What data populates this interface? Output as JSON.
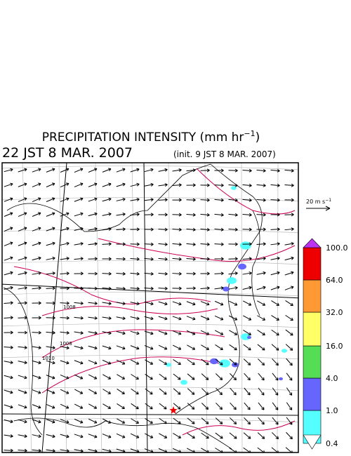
{
  "header": {
    "title": "PRECIPITATION INTENSITY (mm hr",
    "title_exponent": "−1",
    "title_close": ")",
    "valid_time": "22 JST 8 MAR. 2007",
    "init_time": "(init. 9 JST 8 MAR. 2007)"
  },
  "vector_scale": {
    "label": "20 m s",
    "exponent": "−1"
  },
  "isobar_labels": [
    "1008",
    "1008",
    "1010"
  ],
  "colorbar": {
    "labels": [
      "0.4",
      "1.0",
      "4.0",
      "16.0",
      "32.0",
      "64.0",
      "100.0"
    ],
    "colors": [
      "#55ffff",
      "#6666ff",
      "#55dd55",
      "#ffff66",
      "#ff9933",
      "#ee0000"
    ],
    "under_color": "#ffffff",
    "over_color": "#bb33ee"
  }
}
